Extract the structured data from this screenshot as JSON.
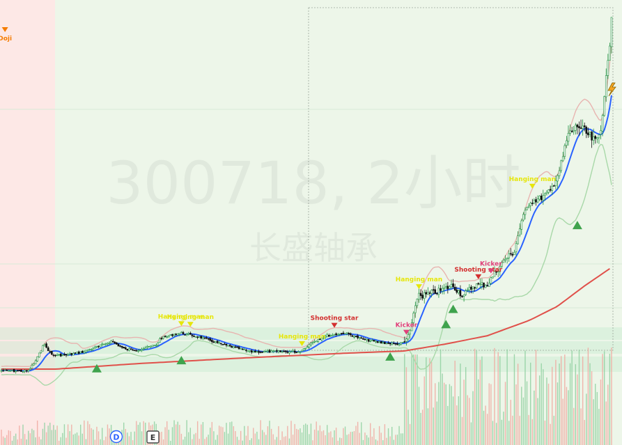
{
  "watermark": {
    "symbol": "300718, 2小时",
    "name": "长盛轴承"
  },
  "markers": {
    "d_label": "D",
    "e_label": "E"
  },
  "colors": {
    "up": "#1e8f3e",
    "down": "#111111",
    "ma_fast": "#2962ff",
    "ma_slow": "#e0504a",
    "bb_upper": "#e8b4b0",
    "bb_lower": "#a8d8a8",
    "zone_red": "#fde8e6",
    "zone_green": "#edf6e9",
    "signal_doji": "#f57c00",
    "signal_hammer": "#e6e60a",
    "signal_shooting": "#d32f2f",
    "signal_kicker": "#e0407a",
    "signal_bull": "#3fa34d",
    "bolt": "#f5a623"
  },
  "chart_data": {
    "type": "candlestick",
    "title": "300718, 2小时",
    "subtitle": "长盛轴承",
    "axes_visible": false,
    "signals": [
      {
        "label": "Doji",
        "kind": "doji",
        "index": 2
      },
      {
        "label": "Hanging man",
        "kind": "hammer",
        "index": 100
      },
      {
        "label": "Hanging man",
        "kind": "hammer",
        "index": 105
      },
      {
        "label": "Hanging man",
        "kind": "hammer",
        "index": 167
      },
      {
        "label": "Shooting star",
        "kind": "shooting",
        "index": 185
      },
      {
        "label": "Kicker",
        "kind": "kicker",
        "index": 225
      },
      {
        "label": "Hanging man",
        "kind": "hammer",
        "index": 232
      },
      {
        "label": "Shooting star",
        "kind": "shooting",
        "index": 265
      },
      {
        "label": "Kicker",
        "kind": "kicker",
        "index": 272
      },
      {
        "label": "Hanging man",
        "kind": "hammer",
        "index": 295
      },
      {
        "label": "",
        "kind": "bull",
        "index": 53
      },
      {
        "label": "",
        "kind": "bull",
        "index": 100
      },
      {
        "label": "",
        "kind": "bull",
        "index": 216
      },
      {
        "label": "",
        "kind": "bull",
        "index": 247
      },
      {
        "label": "",
        "kind": "bull",
        "index": 251
      },
      {
        "label": "",
        "kind": "bull",
        "index": 320
      }
    ],
    "series": [
      {
        "name": "",
        "kind": "candles"
      },
      {
        "name": "",
        "kind": "ma_fast"
      },
      {
        "name": "",
        "kind": "ma_slow"
      },
      {
        "name": "",
        "kind": "bb_upper"
      },
      {
        "name": "",
        "kind": "bb_lower"
      },
      {
        "name": "",
        "kind": "volume"
      }
    ]
  }
}
